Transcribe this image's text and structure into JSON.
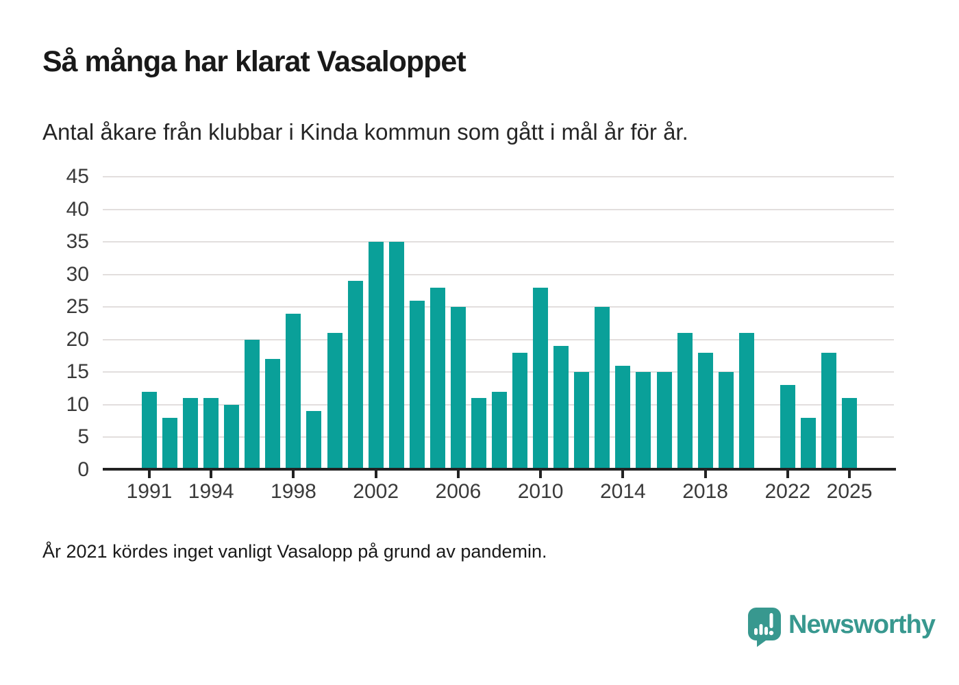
{
  "header": {
    "title": "Så många har klarat Vasaloppet",
    "subtitle": "Antal åkare från klubbar i Kinda kommun som gått i mål år för år."
  },
  "chart_data": {
    "type": "bar",
    "title": "Så många har klarat Vasaloppet",
    "xlabel": "",
    "ylabel": "",
    "categories": [
      1991,
      1992,
      1993,
      1994,
      1995,
      1996,
      1997,
      1998,
      1999,
      2000,
      2001,
      2002,
      2003,
      2004,
      2005,
      2006,
      2007,
      2008,
      2009,
      2010,
      2011,
      2012,
      2013,
      2014,
      2015,
      2016,
      2017,
      2018,
      2019,
      2020,
      2021,
      2022,
      2023,
      2024,
      2025
    ],
    "values": [
      12,
      8,
      11,
      11,
      10,
      20,
      17,
      24,
      9,
      21,
      29,
      35,
      35,
      26,
      28,
      25,
      11,
      12,
      18,
      28,
      19,
      15,
      25,
      16,
      15,
      15,
      21,
      18,
      15,
      21,
      null,
      13,
      8,
      18,
      11
    ],
    "missing_years": [
      2021
    ],
    "ylim": [
      0,
      45
    ],
    "yticks": [
      0,
      5,
      10,
      15,
      20,
      25,
      30,
      35,
      40,
      45
    ],
    "xticks": [
      1991,
      1994,
      1998,
      2002,
      2006,
      2010,
      2014,
      2018,
      2022,
      2025
    ],
    "grid": true,
    "legend": "none",
    "bar_color": "#0aa099"
  },
  "footnote": "År 2021 kördes inget vanligt Vasalopp på grund av pandemin.",
  "logo": {
    "text": "Newsworthy",
    "icon": "newsworthy-chart-bubble-icon",
    "color": "#38988f"
  },
  "colors": {
    "bar": "#0aa099",
    "axis": "#222222",
    "grid": "#e2dedd",
    "title_text": "#191919",
    "tick_text": "#3a3a3a",
    "logo": "#38988f"
  }
}
